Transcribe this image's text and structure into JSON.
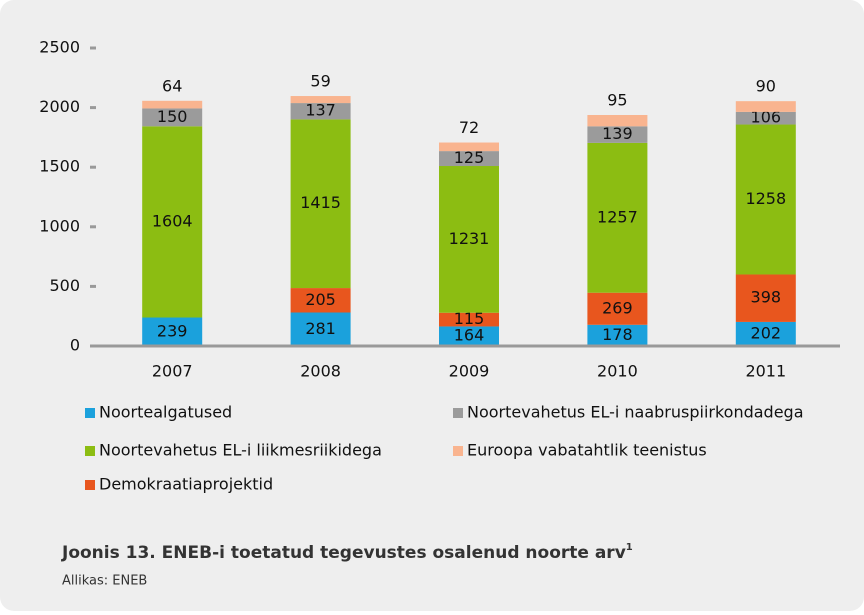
{
  "chart_data": {
    "type": "bar",
    "stacked": true,
    "categories": [
      "2007",
      "2008",
      "2009",
      "2010",
      "2011"
    ],
    "series": [
      {
        "name": "Noortealgatused",
        "color": "#1ba1dc",
        "values": [
          239,
          281,
          164,
          178,
          202
        ]
      },
      {
        "name": "Demokraatiaprojektid",
        "color": "#e8561e",
        "values": [
          null,
          205,
          115,
          269,
          398
        ]
      },
      {
        "name": "Noortevahetus EL-i liikmesriikidega",
        "color": "#8cbd12",
        "values": [
          1604,
          1415,
          1231,
          1257,
          1258
        ]
      },
      {
        "name": "Noortevahetus EL-i naabruspiirkondadega",
        "color": "#9b9b9b",
        "values": [
          150,
          137,
          125,
          139,
          106
        ]
      },
      {
        "name": "Euroopa vabatahtlik teenistus",
        "color": "#f9b48f",
        "values": [
          64,
          59,
          72,
          95,
          90
        ]
      }
    ],
    "ylim": [
      0,
      2500
    ],
    "yticks": [
      0,
      500,
      1000,
      1500,
      2000,
      2500
    ],
    "caption": "Joonis 13. ENEB-i toetatud tegevustes osalenud noorte arv",
    "caption_note": "1",
    "source": "Allikas: ENEB"
  }
}
